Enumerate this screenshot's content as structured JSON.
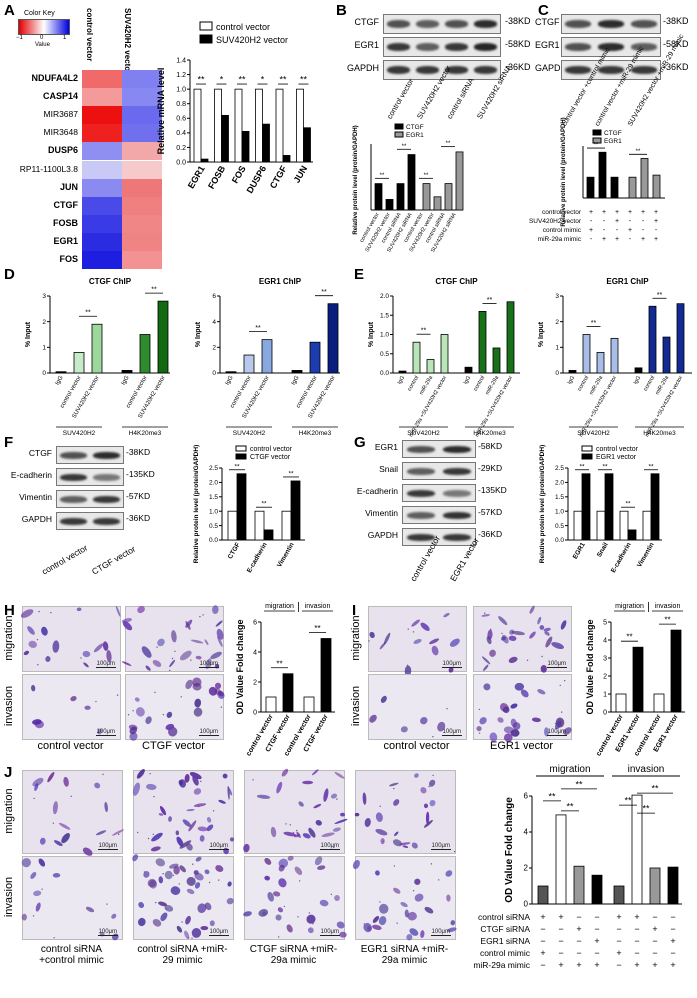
{
  "panel_letters": {
    "A": "A",
    "B": "B",
    "C": "C",
    "D": "D",
    "E": "E",
    "F": "F",
    "G": "G",
    "H": "H",
    "I": "I",
    "J": "J"
  },
  "heatmap": {
    "color_key_title": "Color Key",
    "color_key_ticks": [
      "−1",
      "0",
      "1"
    ],
    "color_key_label": "Value",
    "columns": [
      "control vector",
      "SUV420H2 vector"
    ],
    "genes": [
      "NDUFA4L2",
      "CASP14",
      "MIR3687",
      "MIR3648",
      "DUSP6",
      "RP11-1100L3.8",
      "JUN",
      "CTGF",
      "FOSB",
      "EGR1",
      "FOS"
    ],
    "bold_genes": [
      "NDUFA4L2",
      "CASP14",
      "DUSP6",
      "JUN",
      "CTGF",
      "FOSB",
      "EGR1",
      "FOS"
    ],
    "cells_control": [
      "#f06a6a",
      "#f49a9a",
      "#ec1010",
      "#ee2020",
      "#8f8ff2",
      "#c9c9f6",
      "#8a8af0",
      "#4a4ae8",
      "#3a3ae6",
      "#2b2be2",
      "#1e1ee0"
    ],
    "cells_suv": [
      "#8080f0",
      "#8888f2",
      "#6a6aee",
      "#7070ee",
      "#f2a8a8",
      "#f6caca",
      "#ee7878",
      "#f08080",
      "#f08686",
      "#f08484",
      "#f29292"
    ]
  },
  "chart_data": [
    {
      "id": "A-mrna",
      "type": "bar",
      "ylabel": "Relative mRNA level",
      "ylim": [
        0,
        1.4
      ],
      "yticks": [
        "0.0",
        "0.2",
        "0.4",
        "0.6",
        "0.8",
        "1.0",
        "1.2",
        "1.4"
      ],
      "categories": [
        "EGR1",
        "FOSB",
        "FOS",
        "DUSP6",
        "CTGF",
        "JUN"
      ],
      "series": [
        {
          "name": "control vector",
          "values": [
            1.0,
            1.0,
            1.0,
            1.0,
            1.0,
            1.0
          ],
          "color": "#ffffff"
        },
        {
          "name": "SUV420H2 vector",
          "values": [
            0.04,
            0.64,
            0.42,
            0.52,
            0.09,
            0.47
          ],
          "color": "#000000"
        }
      ],
      "significance": [
        "**",
        "*",
        "**",
        "*",
        "**",
        "**"
      ]
    },
    {
      "id": "B-protein",
      "type": "bar",
      "ylabel": "Relative protein level (protein/GAPDH)",
      "categories": [
        "control vector",
        "SUV420H2 vector",
        "control siRNA",
        "SUV420H2 siRNA"
      ],
      "series": [
        {
          "name": "CTGF",
          "values": [
            1.0,
            0.4,
            1.0,
            2.1
          ],
          "color": "#000000"
        },
        {
          "name": "EGR1",
          "values": [
            1.0,
            0.5,
            1.0,
            2.2
          ],
          "color": "#999999"
        }
      ],
      "xlabels": [
        "control vector",
        "SUV420H2 vector",
        "control siRNA",
        "SUV420H2 siRNA",
        "control vector",
        "SUV420H2 vector",
        "control siRNA",
        "SUV420H2 siRNA"
      ]
    },
    {
      "id": "C-protein",
      "type": "bar",
      "ylabel": "Relative protein level (protein/GAPDH)",
      "series": [
        {
          "name": "CTGF",
          "values": [
            1.0,
            2.2,
            1.0
          ],
          "color": "#000000"
        },
        {
          "name": "EGR1",
          "values": [
            1.0,
            1.9,
            1.1
          ],
          "color": "#999999"
        }
      ],
      "row_labels": [
        "control vector",
        "SUV420H2 vector",
        "control mimic",
        "miR-29a mimic"
      ],
      "row_signs": [
        [
          "+",
          "+",
          "+",
          "+",
          "+",
          "+"
        ],
        [
          "-",
          "-",
          "+",
          "-",
          "-",
          "+"
        ],
        [
          "+",
          "-",
          "-",
          "+",
          "-",
          "-"
        ],
        [
          "-",
          "+",
          "+",
          "-",
          "+",
          "+"
        ]
      ]
    },
    {
      "id": "D-ctgf",
      "type": "bar",
      "title": "CTGF ChIP",
      "ylabel": "% Input",
      "ylim": [
        0,
        3
      ],
      "yticks": [
        "0",
        "1",
        "2",
        "3"
      ],
      "categories": [
        "IgG",
        "control vector",
        "SUV420H2 vector",
        "IgG",
        "control vector",
        "SUV420H2 vector"
      ],
      "values": [
        0.05,
        0.8,
        1.9,
        0.1,
        1.5,
        2.8
      ],
      "colors": [
        "#000000",
        "#c6ebc6",
        "#9cd89c",
        "#000000",
        "#2e8b2e",
        "#126912"
      ],
      "groups": [
        "SUV420H2",
        "H4K20me3"
      ]
    },
    {
      "id": "D-egr1",
      "type": "bar",
      "title": "EGR1 ChIP",
      "ylabel": "% Input",
      "ylim": [
        0,
        6
      ],
      "yticks": [
        "0",
        "2",
        "4",
        "6"
      ],
      "categories": [
        "IgG",
        "control vector",
        "SUV420H2 vector",
        "IgG",
        "control vector",
        "SUV420H2 vector"
      ],
      "values": [
        0.1,
        1.4,
        2.6,
        0.2,
        2.4,
        5.4
      ],
      "colors": [
        "#000000",
        "#b8c9ec",
        "#8aa8e0",
        "#000000",
        "#1d3cae",
        "#0a1e80"
      ],
      "groups": [
        "SUV420H2",
        "H4K20me3"
      ]
    },
    {
      "id": "E-ctgf",
      "type": "bar",
      "title": "CTGF ChIP",
      "ylabel": "% Input",
      "ylim": [
        0,
        2
      ],
      "yticks": [
        "0.0",
        "0.5",
        "1.0",
        "1.5",
        "2.0"
      ],
      "categories": [
        "IgG",
        "control",
        "miR-29a",
        "miR-29a +SUV420H2 vector",
        "IgG",
        "control",
        "miR-29a",
        "miR-29a +SUV420H2 vector"
      ],
      "values": [
        0.05,
        0.8,
        0.35,
        1.0,
        0.15,
        1.6,
        0.65,
        1.85
      ],
      "colors": [
        "#000000",
        "#b8e6b8",
        "#b8e6b8",
        "#b8e6b8",
        "#000000",
        "#187018",
        "#187018",
        "#187018"
      ],
      "groups": [
        "SUV420H2",
        "H4K20me3"
      ]
    },
    {
      "id": "E-egr1",
      "type": "bar",
      "title": "EGR1 ChIP",
      "ylabel": "% Input",
      "ylim": [
        0,
        3
      ],
      "yticks": [
        "0",
        "1",
        "2",
        "3"
      ],
      "categories": [
        "IgG",
        "control",
        "miR-29a",
        "miR-29a +SUV420H2 vector",
        "IgG",
        "control",
        "miR-29a",
        "miR-29a +SUV420H2 vector"
      ],
      "values": [
        0.1,
        1.5,
        0.8,
        1.35,
        0.2,
        2.6,
        1.4,
        2.7
      ],
      "colors": [
        "#000000",
        "#a8bde8",
        "#a8bde8",
        "#a8bde8",
        "#000000",
        "#132a95",
        "#132a95",
        "#132a95"
      ],
      "groups": [
        "SUV420H2",
        "H4K20me3"
      ]
    },
    {
      "id": "F-protein",
      "type": "bar",
      "ylabel": "Relative protein level (protein/GAPDH)",
      "ylim": [
        0,
        2.5
      ],
      "yticks": [
        "0.0",
        "0.5",
        "1.0",
        "1.5",
        "2.0",
        "2.5"
      ],
      "categories": [
        "CTGF",
        "E-cadherin",
        "Vimentin"
      ],
      "series": [
        {
          "name": "control vector",
          "values": [
            1.0,
            1.0,
            1.0
          ],
          "color": "#ffffff"
        },
        {
          "name": "CTGF vector",
          "values": [
            2.3,
            0.35,
            2.05
          ],
          "color": "#000000"
        }
      ],
      "significance": [
        "**",
        "**",
        "**"
      ]
    },
    {
      "id": "G-protein",
      "type": "bar",
      "ylabel": "Relative protein level (protein/GAPDH)",
      "ylim": [
        0,
        2.5
      ],
      "yticks": [
        "0.0",
        "0.5",
        "1.0",
        "1.5",
        "2.0",
        "2.5"
      ],
      "categories": [
        "EGR1",
        "Snail",
        "E-cadherin",
        "Vimentin"
      ],
      "series": [
        {
          "name": "control vector",
          "values": [
            1.0,
            1.0,
            1.0,
            1.0
          ],
          "color": "#ffffff"
        },
        {
          "name": "EGR1 vector",
          "values": [
            2.3,
            2.3,
            0.35,
            2.3
          ],
          "color": "#000000"
        }
      ],
      "significance": [
        "**",
        "**",
        "**",
        "**"
      ]
    },
    {
      "id": "H-od",
      "type": "bar",
      "ylabel": "OD Value Fold change",
      "ylim": [
        0,
        6
      ],
      "yticks": [
        "0",
        "2",
        "4",
        "6"
      ],
      "categories": [
        "control vector",
        "CTGF vector",
        "control vector",
        "CTGF vector"
      ],
      "values": [
        1.0,
        2.55,
        1.0,
        4.9
      ],
      "colors": [
        "#ffffff",
        "#000000",
        "#ffffff",
        "#000000"
      ],
      "groups": [
        "migration",
        "invasion"
      ]
    },
    {
      "id": "I-od",
      "type": "bar",
      "ylabel": "OD Value Fold change",
      "ylim": [
        0,
        5
      ],
      "yticks": [
        "0",
        "1",
        "2",
        "3",
        "4",
        "5"
      ],
      "categories": [
        "control vector",
        "EGR1 vector",
        "control vector",
        "EGR1 vector"
      ],
      "values": [
        1.0,
        3.6,
        1.0,
        4.55
      ],
      "colors": [
        "#ffffff",
        "#000000",
        "#ffffff",
        "#000000"
      ],
      "groups": [
        "migration",
        "invasion"
      ]
    },
    {
      "id": "J-od",
      "type": "bar",
      "ylabel": "OD Value Fold change",
      "ylim": [
        0,
        6
      ],
      "yticks": [
        "0",
        "2",
        "4",
        "6"
      ],
      "values": [
        1.0,
        4.95,
        2.1,
        1.6,
        1.0,
        6.05,
        2.0,
        2.05
      ],
      "colors": [
        "#555555",
        "#ffffff",
        "#999999",
        "#000000",
        "#555555",
        "#ffffff",
        "#999999",
        "#000000"
      ],
      "groups": [
        "migration",
        "invasion"
      ],
      "row_labels": [
        "control siRNA",
        "CTGF siRNA",
        "EGR1 siRNA",
        "control mimic",
        "miR-29a mimic"
      ],
      "row_signs": [
        [
          "+",
          "+",
          "−",
          "−",
          "+",
          "+",
          "−",
          "−"
        ],
        [
          "−",
          "−",
          "+",
          "−",
          "−",
          "−",
          "+",
          "−"
        ],
        [
          "−",
          "−",
          "−",
          "+",
          "−",
          "−",
          "−",
          "+"
        ],
        [
          "+",
          "−",
          "−",
          "−",
          "+",
          "−",
          "−",
          "−"
        ],
        [
          "−",
          "+",
          "+",
          "+",
          "−",
          "+",
          "+",
          "+"
        ]
      ]
    }
  ],
  "blots": {
    "B": {
      "rows": [
        "CTGF",
        "EGR1",
        "GAPDH"
      ],
      "sizes": [
        "-38KD",
        "-58KD",
        "-36KD"
      ],
      "lanes": [
        "control vector",
        "SUV420H2 vector",
        "control siRNA",
        "SUV420H2 siRNA"
      ]
    },
    "C": {
      "rows": [
        "CTGF",
        "EGR1",
        "GAPDH"
      ],
      "sizes": [
        "-38KD",
        "-58KD",
        "-36KD"
      ],
      "lanes": [
        "control vector +control mimic",
        "control vector +miR-29 mimic",
        "SUV420H2 vector +miR-29 mimic"
      ]
    },
    "F": {
      "rows": [
        "CTGF",
        "E-cadherin",
        "Vimentin",
        "GAPDH"
      ],
      "sizes": [
        "-38KD",
        "-135KD",
        "-57KD",
        "-36KD"
      ],
      "lanes": [
        "control vector",
        "CTGF vector"
      ]
    },
    "G": {
      "rows": [
        "EGR1",
        "Snail",
        "E-cadherin",
        "Vimentin",
        "GAPDH"
      ],
      "sizes": [
        "-58KD",
        "-29KD",
        "-135KD",
        "-57KD",
        "-36KD"
      ],
      "lanes": [
        "control vector",
        "EGR1 vector"
      ]
    }
  },
  "micro": {
    "H": {
      "rows": [
        "migration",
        "invasion"
      ],
      "cols": [
        "control vector",
        "CTGF vector"
      ],
      "scale": "100μm"
    },
    "I": {
      "rows": [
        "migration",
        "invasion"
      ],
      "cols": [
        "control vector",
        "EGR1 vector"
      ],
      "scale": "100μm"
    },
    "J": {
      "rows": [
        "migration",
        "invasion"
      ],
      "cols": [
        "control siRNA +control mimic",
        "control siRNA +miR-29 mimic",
        "CTGF siRNA +miR-29a mimic",
        "EGR1 siRNA +miR-29a mimic"
      ],
      "scale": "100μm"
    }
  },
  "colors": {
    "crystal_violet": "#5a3a9a",
    "micro_bg": "#e6e0ee"
  }
}
